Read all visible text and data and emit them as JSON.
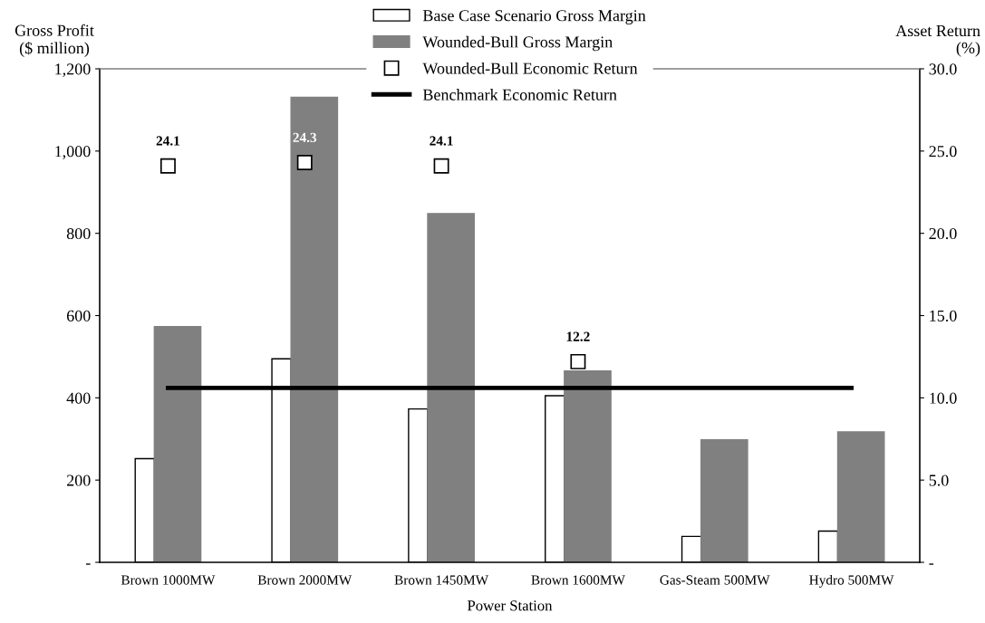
{
  "chart_data": {
    "type": "bar",
    "xlabel": "Power Station",
    "ylabel": "Gross Profit\n($ million)",
    "y2label": "Asset Return\n(%)",
    "categories": [
      "Brown 1000MW",
      "Brown 2000MW",
      "Brown 1450MW",
      "Brown 1600MW",
      "Gas-Steam 500MW",
      "Hydro 500MW"
    ],
    "series": [
      {
        "name": "Base Case Scenario Gross Margin",
        "color": "#ffffff",
        "values": [
          252,
          495,
          373,
          405,
          63,
          76
        ]
      },
      {
        "name": "Wounded-Bull Gross Margin",
        "color": "#808080",
        "values": [
          573,
          1131,
          848,
          465,
          298,
          317
        ]
      },
      {
        "name": "Wounded-Bull Economic Return",
        "type": "scatter",
        "axis": "y2",
        "color": "#000000",
        "marker": "square",
        "values": [
          24.1,
          24.3,
          24.1,
          12.2,
          null,
          null
        ],
        "value_labels": [
          "24.1",
          "24.3",
          "24.1",
          "12.2",
          null,
          null
        ]
      },
      {
        "name": "Benchmark Economic Return",
        "type": "line",
        "axis": "y2",
        "color": "#000000",
        "line_style": "solid",
        "values": [
          10.6,
          10.6,
          10.6,
          10.6,
          10.6,
          10.6
        ]
      }
    ],
    "ylim": [
      0,
      1200
    ],
    "yticks": [
      {
        "value": 0,
        "label": "-"
      },
      {
        "value": 200,
        "label": "200"
      },
      {
        "value": 400,
        "label": "400"
      },
      {
        "value": 600,
        "label": "600"
      },
      {
        "value": 800,
        "label": "800"
      },
      {
        "value": 1000,
        "label": "1,000"
      },
      {
        "value": 1200,
        "label": "1,200"
      }
    ],
    "y2lim": [
      0,
      30
    ],
    "y2ticks": [
      {
        "value": 0,
        "label": "-"
      },
      {
        "value": 5,
        "label": "5.0"
      },
      {
        "value": 10,
        "label": "10.0"
      },
      {
        "value": 15,
        "label": "15.0"
      },
      {
        "value": 20,
        "label": "20.0"
      },
      {
        "value": 25,
        "label": "25.0"
      },
      {
        "value": 30,
        "label": "30.0"
      }
    ],
    "legend": "top",
    "grid": false
  }
}
